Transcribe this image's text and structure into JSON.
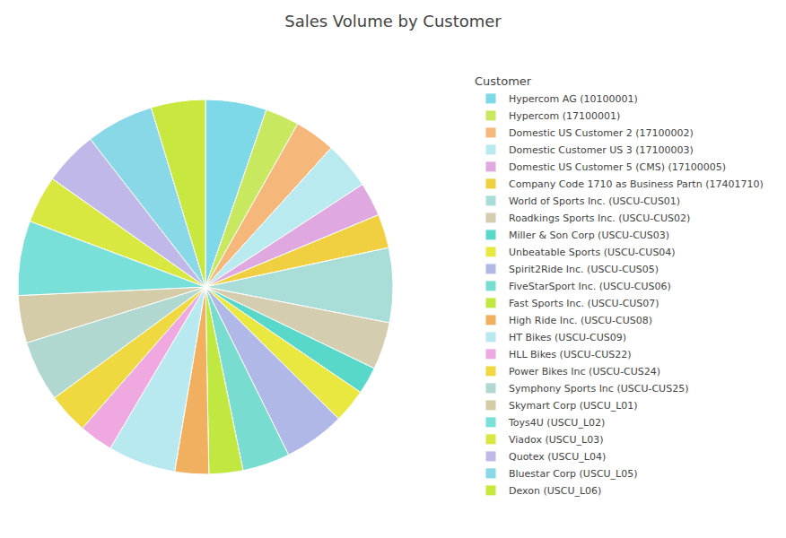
{
  "chart_data": {
    "type": "pie",
    "title": "Sales Volume by Customer",
    "legend_title": "Customer",
    "legend": "right",
    "categories": [
      "Hypercom AG (10100001)",
      "Hypercom (17100001)",
      "Domestic US Customer 2 (17100002)",
      "Domestic Customer US 3 (17100003)",
      "Domestic US Customer 5 (CMS) (17100005)",
      "Company Code 1710 as Business Partn (17401710)",
      "World of Sports Inc. (USCU-CUS01)",
      "Roadkings Sports Inc. (USCU-CUS02)",
      "Miller & Son Corp (USCU-CUS03)",
      "Unbeatable Sports (USCU-CUS04)",
      "Spirit2Ride Inc. (USCU-CUS05)",
      "FiveStarSport Inc. (USCU-CUS06)",
      "Fast Sports Inc. (USCU-CUS07)",
      "High Ride Inc. (USCU-CUS08)",
      "HT Bikes (USCU-CUS09)",
      "HLL Bikes (USCU-CUS22)",
      "Power Bikes Inc (USCU-CUS24)",
      "Symphony Sports Inc (USCU-CUS25)",
      "Skymart Corp (USCU_L01)",
      "Toys4U (USCU_L02)",
      "Viadox (USCU_L03)",
      "Quotex (USCU_L04)",
      "Bluestar Corp (USCU_L05)",
      "Dexon (USCU_L06)"
    ],
    "values": [
      4.5,
      2.5,
      3.0,
      3.5,
      2.5,
      2.5,
      5.5,
      3.5,
      2.0,
      2.5,
      4.5,
      3.5,
      2.5,
      2.5,
      5.0,
      2.5,
      3.0,
      4.5,
      3.5,
      5.5,
      3.5,
      4.0,
      5.0,
      4.0
    ],
    "colors": [
      "#7dd8e8",
      "#c8e860",
      "#f5b87a",
      "#b8eaf0",
      "#e0a8e0",
      "#f0d040",
      "#a8ddd8",
      "#d4cdb0",
      "#58d8c8",
      "#e8e840",
      "#b0b8e8",
      "#78ddd0",
      "#c0e840",
      "#f0b060",
      "#b8e8f0",
      "#f0a8e0",
      "#f0d840",
      "#b0d8d0",
      "#d4cca8",
      "#78e0d8",
      "#d8e840",
      "#c0b8e8",
      "#88d8e8",
      "#c8e840"
    ]
  }
}
